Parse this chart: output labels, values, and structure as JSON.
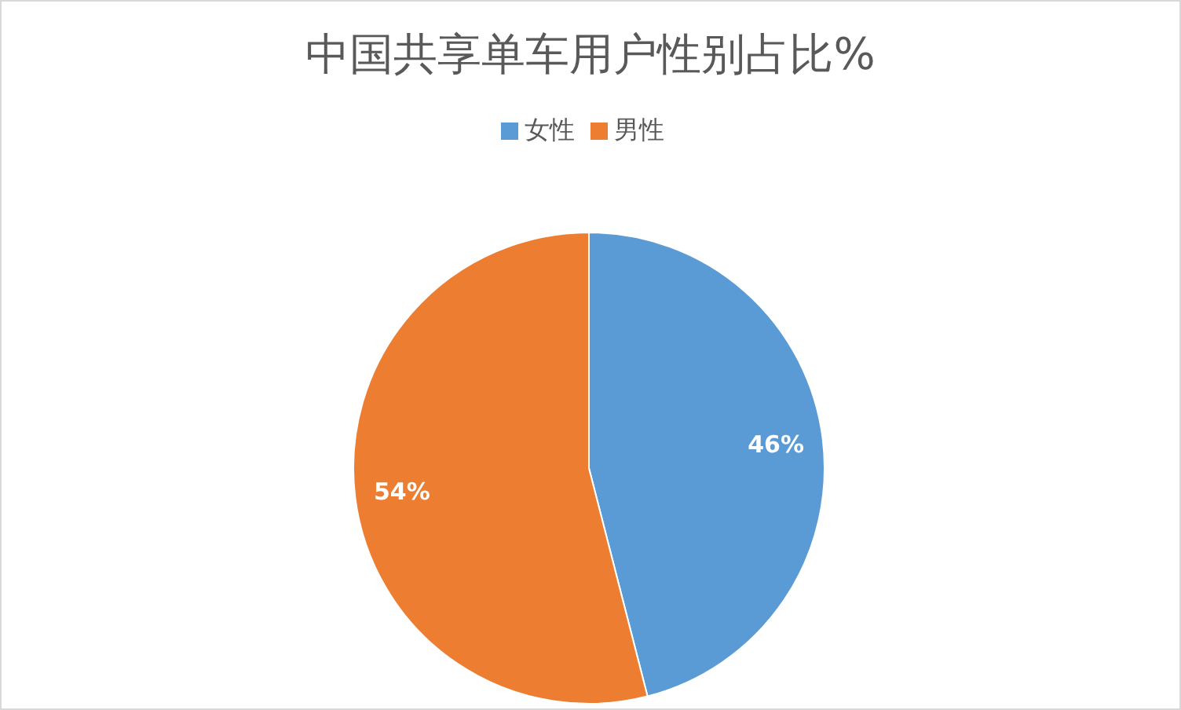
{
  "chart_data": {
    "type": "pie",
    "title": "中国共享单车用户性别占比%",
    "categories": [
      "女性",
      "男性"
    ],
    "values": [
      46,
      54
    ],
    "colors": [
      "#5b9bd5",
      "#ed7d31"
    ],
    "value_labels": [
      "46%",
      "54%"
    ],
    "legend": "top"
  }
}
